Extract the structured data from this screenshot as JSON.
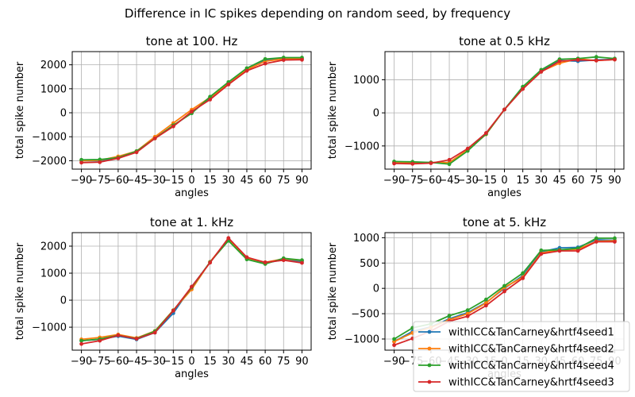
{
  "figure": {
    "suptitle": "Difference in IC spikes depending on random seed, by frequency"
  },
  "legend": {
    "position": "lower-right",
    "entries": [
      {
        "label": "withICC&TanCarney&hrtf4seed1",
        "color": "#1f77b4"
      },
      {
        "label": "withICC&TanCarney&hrtf4seed2",
        "color": "#ff7f0e"
      },
      {
        "label": "withICC&TanCarney&hrtf4seed4",
        "color": "#2ca02c"
      },
      {
        "label": "withICC&TanCarney&hrtf4seed3",
        "color": "#d62728"
      }
    ]
  },
  "chart_data": [
    {
      "type": "line",
      "title": "tone at 100. Hz",
      "xlabel": "angles",
      "ylabel": "total spike number",
      "x": [
        -90,
        -75,
        -60,
        -45,
        -30,
        -15,
        0,
        15,
        30,
        45,
        60,
        75,
        90
      ],
      "xticks": [
        -90,
        -75,
        -60,
        -45,
        -30,
        -15,
        0,
        15,
        30,
        45,
        60,
        75,
        90
      ],
      "yticks": [
        -2000,
        -1000,
        0,
        1000,
        2000
      ],
      "ylim": [
        -2350,
        2550
      ],
      "grid": true,
      "series": [
        {
          "name": "withICC&TanCarney&hrtf4seed1",
          "color": "#1f77b4",
          "values": [
            -2000,
            -2000,
            -1900,
            -1620,
            -1060,
            -540,
            0,
            620,
            1200,
            1800,
            2200,
            2250,
            2250
          ]
        },
        {
          "name": "withICC&TanCarney&hrtf4seed2",
          "color": "#ff7f0e",
          "values": [
            -2000,
            -1980,
            -1820,
            -1600,
            -1000,
            -430,
            130,
            640,
            1200,
            1800,
            2150,
            2250,
            2250
          ]
        },
        {
          "name": "withICC&TanCarney&hrtf4seed4",
          "color": "#2ca02c",
          "values": [
            -1960,
            -1950,
            -1870,
            -1600,
            -1070,
            -520,
            -20,
            670,
            1280,
            1860,
            2240,
            2300,
            2300
          ]
        },
        {
          "name": "withICC&TanCarney&hrtf4seed3",
          "color": "#d62728",
          "values": [
            -2080,
            -2060,
            -1900,
            -1650,
            -1070,
            -570,
            50,
            550,
            1180,
            1750,
            2050,
            2200,
            2210
          ]
        }
      ]
    },
    {
      "type": "line",
      "title": "tone at 0.5 kHz",
      "xlabel": "angles",
      "ylabel": "total spike number",
      "x": [
        -90,
        -75,
        -60,
        -45,
        -30,
        -15,
        0,
        15,
        30,
        45,
        60,
        75,
        90
      ],
      "xticks": [
        -90,
        -75,
        -60,
        -45,
        -30,
        -15,
        0,
        15,
        30,
        45,
        60,
        75,
        90
      ],
      "yticks": [
        -1000,
        0,
        1000
      ],
      "ylim": [
        -1700,
        1850
      ],
      "grid": true,
      "series": [
        {
          "name": "withICC&TanCarney&hrtf4seed1",
          "color": "#1f77b4",
          "values": [
            -1500,
            -1500,
            -1500,
            -1500,
            -1130,
            -640,
            100,
            780,
            1270,
            1580,
            1560,
            1600,
            1620
          ]
        },
        {
          "name": "withICC&TanCarney&hrtf4seed2",
          "color": "#ff7f0e",
          "values": [
            -1500,
            -1520,
            -1500,
            -1500,
            -1120,
            -650,
            100,
            730,
            1250,
            1500,
            1630,
            1580,
            1610
          ]
        },
        {
          "name": "withICC&TanCarney&hrtf4seed4",
          "color": "#2ca02c",
          "values": [
            -1470,
            -1480,
            -1500,
            -1550,
            -1150,
            -640,
            100,
            790,
            1300,
            1620,
            1640,
            1690,
            1640
          ]
        },
        {
          "name": "withICC&TanCarney&hrtf4seed3",
          "color": "#d62728",
          "values": [
            -1530,
            -1540,
            -1520,
            -1420,
            -1080,
            -610,
            100,
            720,
            1240,
            1560,
            1600,
            1580,
            1610
          ]
        }
      ]
    },
    {
      "type": "line",
      "title": "tone at 1. kHz",
      "xlabel": "angles",
      "ylabel": "total spike number",
      "x": [
        -90,
        -75,
        -60,
        -45,
        -30,
        -15,
        0,
        15,
        30,
        45,
        60,
        75,
        90
      ],
      "xticks": [
        -90,
        -75,
        -60,
        -45,
        -30,
        -15,
        0,
        15,
        30,
        45,
        60,
        75,
        90
      ],
      "yticks": [
        -1000,
        0,
        1000,
        2000
      ],
      "ylim": [
        -1850,
        2500
      ],
      "grid": true,
      "series": [
        {
          "name": "withICC&TanCarney&hrtf4seed1",
          "color": "#1f77b4",
          "values": [
            -1500,
            -1450,
            -1330,
            -1450,
            -1200,
            -480,
            500,
            1400,
            2280,
            1560,
            1370,
            1500,
            1430
          ]
        },
        {
          "name": "withICC&TanCarney&hrtf4seed2",
          "color": "#ff7f0e",
          "values": [
            -1450,
            -1380,
            -1270,
            -1400,
            -1140,
            -370,
            400,
            1420,
            2260,
            1560,
            1400,
            1530,
            1470
          ]
        },
        {
          "name": "withICC&TanCarney&hrtf4seed4",
          "color": "#2ca02c",
          "values": [
            -1500,
            -1440,
            -1300,
            -1420,
            -1150,
            -380,
            470,
            1410,
            2200,
            1510,
            1340,
            1550,
            1480
          ]
        },
        {
          "name": "withICC&TanCarney&hrtf4seed3",
          "color": "#d62728",
          "values": [
            -1620,
            -1500,
            -1300,
            -1430,
            -1200,
            -390,
            500,
            1390,
            2300,
            1590,
            1400,
            1480,
            1380
          ]
        }
      ]
    },
    {
      "type": "line",
      "title": "tone at 5. kHz",
      "xlabel": "angles",
      "ylabel": "total spike number",
      "x": [
        -90,
        -75,
        -60,
        -45,
        -30,
        -15,
        0,
        15,
        30,
        45,
        60,
        75,
        90
      ],
      "xticks": [
        -90,
        -75,
        -60,
        -45,
        -30,
        -15,
        0,
        15,
        30,
        45,
        60,
        75,
        90
      ],
      "yticks": [
        -1000,
        -500,
        0,
        500,
        1000
      ],
      "ylim": [
        -1220,
        1100
      ],
      "grid": true,
      "series": [
        {
          "name": "withICC&TanCarney&hrtf4seed1",
          "color": "#1f77b4",
          "values": [
            -1050,
            -850,
            -760,
            -600,
            -480,
            -280,
            0,
            250,
            720,
            800,
            810,
            960,
            950
          ]
        },
        {
          "name": "withICC&TanCarney&hrtf4seed2",
          "color": "#ff7f0e",
          "values": [
            -1050,
            -880,
            -770,
            -620,
            -500,
            -290,
            20,
            220,
            700,
            760,
            770,
            930,
            940
          ]
        },
        {
          "name": "withICC&TanCarney&hrtf4seed4",
          "color": "#2ca02c",
          "values": [
            -1000,
            -780,
            -700,
            -540,
            -430,
            -220,
            50,
            300,
            750,
            760,
            790,
            990,
            990
          ]
        },
        {
          "name": "withICC&TanCarney&hrtf4seed3",
          "color": "#d62728",
          "values": [
            -1120,
            -990,
            -840,
            -650,
            -550,
            -340,
            -60,
            200,
            680,
            740,
            740,
            920,
            920
          ]
        }
      ]
    }
  ]
}
